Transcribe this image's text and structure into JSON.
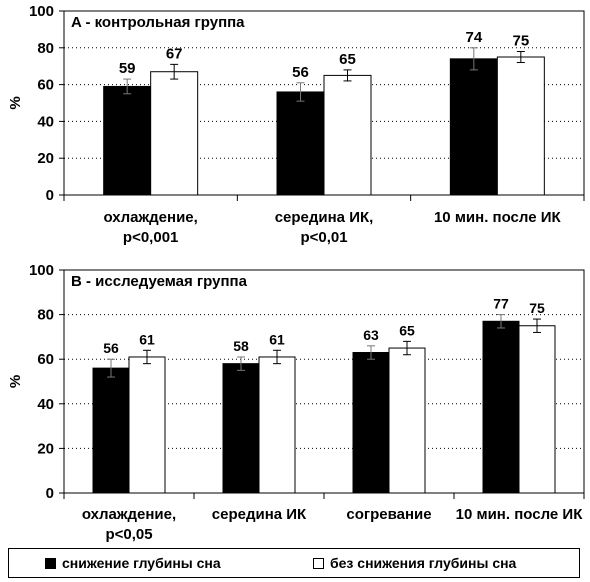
{
  "chart_data": [
    {
      "type": "bar",
      "title": "A - контрольная группа",
      "ylabel": "%",
      "ylim": [
        0,
        100
      ],
      "yticks": [
        0,
        20,
        40,
        60,
        80,
        100
      ],
      "grid": true,
      "categories": [
        [
          "охлаждение,",
          "p<0,001"
        ],
        [
          "середина ИК,",
          "p<0,01"
        ],
        [
          "10 мин. после ИК"
        ]
      ],
      "series": [
        {
          "name": "снижение глубины сна",
          "color": "#000000",
          "values": [
            59,
            56,
            74
          ],
          "labels": [
            "59",
            "56",
            "74"
          ],
          "errors": [
            4,
            5,
            6
          ]
        },
        {
          "name": "без снижения глубины сна",
          "color": "#ffffff",
          "values": [
            67,
            65,
            75
          ],
          "labels": [
            "67",
            "65",
            "75"
          ],
          "errors": [
            4,
            3,
            3
          ]
        }
      ]
    },
    {
      "type": "bar",
      "title": "B - исследуемая группа",
      "ylabel": "%",
      "ylim": [
        0,
        100
      ],
      "yticks": [
        0,
        20,
        40,
        60,
        80,
        100
      ],
      "grid": true,
      "categories": [
        [
          "охлаждение,",
          "p<0,05"
        ],
        [
          "середина ИК"
        ],
        [
          "согревание"
        ],
        [
          "10 мин. после ИК"
        ]
      ],
      "series": [
        {
          "name": "снижение глубины сна",
          "color": "#000000",
          "values": [
            56,
            58,
            63,
            77
          ],
          "labels": [
            "56",
            "58",
            "63",
            "77"
          ],
          "errors": [
            4,
            3,
            3,
            3
          ]
        },
        {
          "name": "без снижения глубины сна",
          "color": "#ffffff",
          "values": [
            61,
            61,
            65,
            75
          ],
          "labels": [
            "61",
            "61",
            "65",
            "75"
          ],
          "errors": [
            3,
            3,
            3,
            3
          ]
        }
      ]
    }
  ],
  "legend": {
    "position": "bottom",
    "items": [
      {
        "label": "снижение глубины сна",
        "color": "#000000"
      },
      {
        "label": "без снижения глубины сна",
        "color": "#ffffff"
      }
    ]
  }
}
